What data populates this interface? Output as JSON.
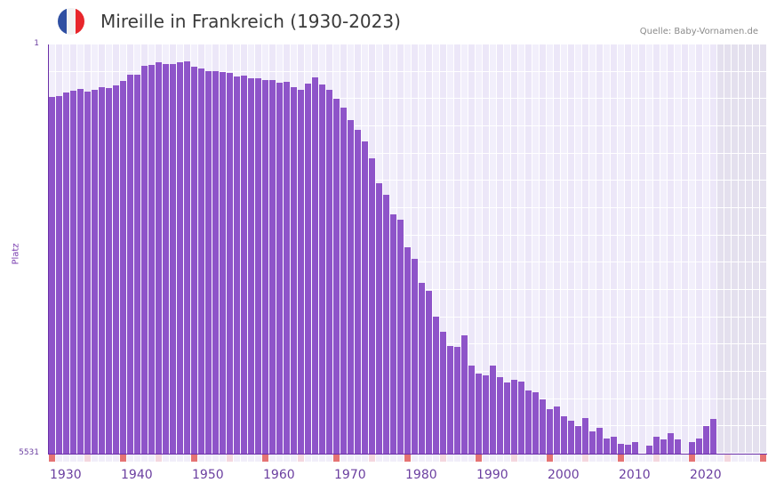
{
  "header": {
    "title": "Mireille in Frankreich (1930-2023)",
    "source": "Quelle: Baby-Vornamen.de",
    "flag_colors": [
      "#2f4fa2",
      "#f3f3f3",
      "#e8262b"
    ]
  },
  "colors": {
    "bar": "#8e54c9",
    "axis": "#6b2fa8",
    "grid_light": "#f2effb",
    "grid_alt": "#ece7f8",
    "future_region": "#e4e0ee",
    "decade_marker": "#e57373",
    "half_decade_marker": "#f4d7de"
  },
  "chart_data": {
    "type": "bar",
    "title": "Mireille in Frankreich (1930-2023)",
    "xlabel": "",
    "ylabel": "Platz",
    "y_axis_inverted": true,
    "ylim": [
      1,
      5531
    ],
    "y_ticks": [
      "1",
      "5531"
    ],
    "x_ticks": [
      "1930",
      "1940",
      "1950",
      "1960",
      "1970",
      "1980",
      "1990",
      "2000",
      "2010",
      "2020"
    ],
    "x_range": [
      1930,
      2030
    ],
    "grid": true,
    "categories": [
      1930,
      1931,
      1932,
      1933,
      1934,
      1935,
      1936,
      1937,
      1938,
      1939,
      1940,
      1941,
      1942,
      1943,
      1944,
      1945,
      1946,
      1947,
      1948,
      1949,
      1950,
      1951,
      1952,
      1953,
      1954,
      1955,
      1956,
      1957,
      1958,
      1959,
      1960,
      1961,
      1962,
      1963,
      1964,
      1965,
      1966,
      1967,
      1968,
      1969,
      1970,
      1971,
      1972,
      1973,
      1974,
      1975,
      1976,
      1977,
      1978,
      1979,
      1980,
      1981,
      1982,
      1983,
      1984,
      1985,
      1986,
      1987,
      1988,
      1989,
      1990,
      1991,
      1992,
      1993,
      1994,
      1995,
      1996,
      1997,
      1998,
      1999,
      2000,
      2001,
      2002,
      2003,
      2004,
      2005,
      2006,
      2007,
      2008,
      2009,
      2010,
      2011,
      2012,
      2013,
      2014,
      2015,
      2016,
      2017,
      2018,
      2019,
      2020,
      2021,
      2022,
      2023
    ],
    "values": [
      710,
      698,
      650,
      626,
      602,
      638,
      614,
      578,
      590,
      554,
      494,
      410,
      410,
      290,
      278,
      242,
      266,
      266,
      242,
      230,
      302,
      326,
      362,
      362,
      374,
      386,
      434,
      422,
      458,
      458,
      482,
      482,
      518,
      506,
      578,
      614,
      530,
      446,
      542,
      614,
      734,
      854,
      1022,
      1154,
      1310,
      1539,
      1875,
      2032,
      2296,
      2368,
      2741,
      2897,
      3222,
      3330,
      3679,
      3883,
      4075,
      4087,
      3931,
      4339,
      4447,
      4471,
      4339,
      4495,
      4567,
      4531,
      4555,
      4675,
      4699,
      4795,
      4928,
      4892,
      5024,
      5084,
      5156,
      5048,
      5228,
      5180,
      5324,
      5300,
      5396,
      5408,
      5372,
      null,
      5420,
      5300,
      5336,
      5252,
      5336,
      null,
      5372,
      5324,
      5156,
      5060
    ]
  }
}
